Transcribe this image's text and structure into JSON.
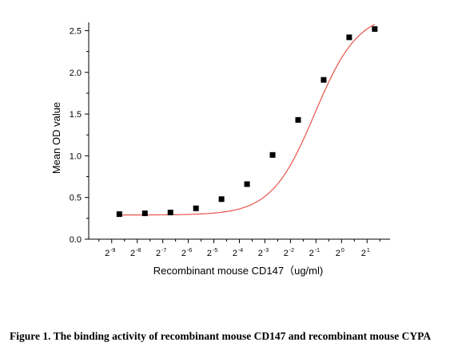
{
  "caption": "Figure 1. The binding activity of recombinant mouse CD147 and recombinant mouse CYPA",
  "chart_data": {
    "type": "scatter",
    "xlabel": "Recombinant mouse CD147（ug/ml)",
    "ylabel": "Mean OD value",
    "x_scale": "log2",
    "x_ticks": [
      {
        "base": "2",
        "exp": "-9"
      },
      {
        "base": "2",
        "exp": "-8"
      },
      {
        "base": "2",
        "exp": "-7"
      },
      {
        "base": "2",
        "exp": "-6"
      },
      {
        "base": "2",
        "exp": "-5"
      },
      {
        "base": "2",
        "exp": "-4"
      },
      {
        "base": "2",
        "exp": "-3"
      },
      {
        "base": "2",
        "exp": "-2"
      },
      {
        "base": "2",
        "exp": "-1"
      },
      {
        "base": "2",
        "exp": "0"
      },
      {
        "base": "2",
        "exp": "1"
      }
    ],
    "xlim_exp": [
      -9.9,
      1.9
    ],
    "ylim": [
      0,
      2.6
    ],
    "y_ticks": [
      "0.0",
      "0.5",
      "1.0",
      "1.5",
      "2.0",
      "2.5"
    ],
    "y_tick_values": [
      0,
      0.5,
      1.0,
      1.5,
      2.0,
      2.5
    ],
    "grid": false,
    "points_color": "#000000",
    "fit_color": "#e8534a",
    "points": [
      {
        "x_exp": -8.7,
        "y": 0.3
      },
      {
        "x_exp": -7.7,
        "y": 0.31
      },
      {
        "x_exp": -6.7,
        "y": 0.32
      },
      {
        "x_exp": -5.7,
        "y": 0.37
      },
      {
        "x_exp": -4.7,
        "y": 0.48
      },
      {
        "x_exp": -3.7,
        "y": 0.66
      },
      {
        "x_exp": -2.7,
        "y": 1.01
      },
      {
        "x_exp": -1.7,
        "y": 1.43
      },
      {
        "x_exp": -0.7,
        "y": 1.91
      },
      {
        "x_exp": 0.3,
        "y": 2.42
      },
      {
        "x_exp": 1.3,
        "y": 2.52
      }
    ]
  }
}
